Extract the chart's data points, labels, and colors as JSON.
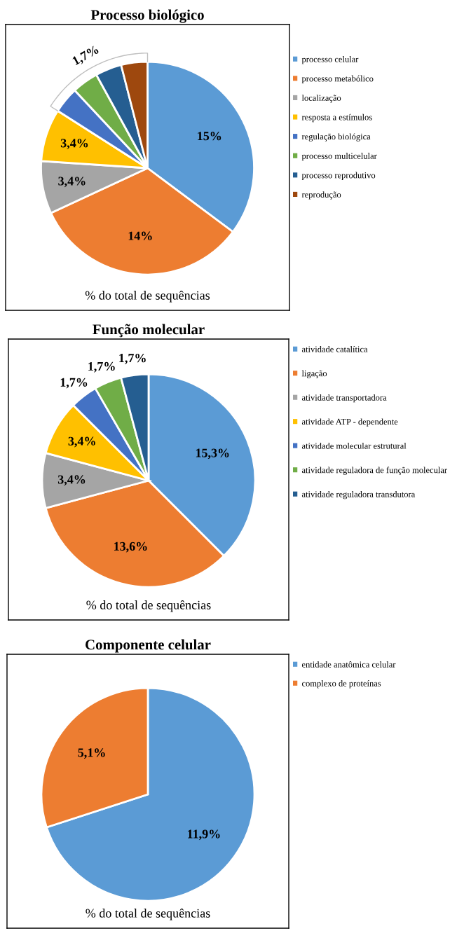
{
  "chart_data": [
    {
      "type": "pie",
      "title": "Processo biológico",
      "categories": [
        "processo celular",
        "processo metabólico",
        "localização",
        "resposta a estímulos",
        "regulação biológica",
        "processo multicelular",
        "processo reprodutivo",
        "reprodução"
      ],
      "values": [
        15,
        14,
        3.4,
        3.4,
        1.7,
        1.7,
        1.7,
        1.7
      ],
      "value_labels": [
        "15%",
        "14%",
        "3,4%",
        "3,4%",
        null,
        null,
        null,
        null
      ],
      "colors": [
        "#5b9bd5",
        "#ed7d31",
        "#a5a5a5",
        "#ffc000",
        "#4472c4",
        "#70ad47",
        "#255e91",
        "#9e480e"
      ],
      "annotations": [
        "1,7%",
        "% do total de sequências"
      ],
      "legend": "right"
    },
    {
      "type": "pie",
      "title": "Função molecular",
      "categories": [
        "atividade catalítica",
        "ligação",
        "atividade transportadora",
        "atividade ATP - dependente",
        "atividade molecular estrutural",
        "atividade reguladora de função molecular",
        "atividade reguladora transdutora"
      ],
      "values": [
        15.3,
        13.6,
        3.4,
        3.4,
        1.7,
        1.7,
        1.7
      ],
      "value_labels": [
        "15,3%",
        "13,6%",
        "3,4%",
        "3,4%",
        "1,7%",
        "1,7%",
        "1,7%"
      ],
      "colors": [
        "#5b9bd5",
        "#ed7d31",
        "#a5a5a5",
        "#ffc000",
        "#4472c4",
        "#70ad47",
        "#255e91"
      ],
      "annotations": [
        "% do total de sequências"
      ],
      "legend": "right"
    },
    {
      "type": "pie",
      "title": "Componente celular",
      "categories": [
        "entidade anatômica celular",
        "complexo de proteínas"
      ],
      "values": [
        11.9,
        5.1
      ],
      "value_labels": [
        "11,9%",
        "5,1%"
      ],
      "colors": [
        "#5b9bd5",
        "#ed7d31"
      ],
      "annotations": [
        "% do total de sequências"
      ],
      "legend": "right"
    }
  ]
}
